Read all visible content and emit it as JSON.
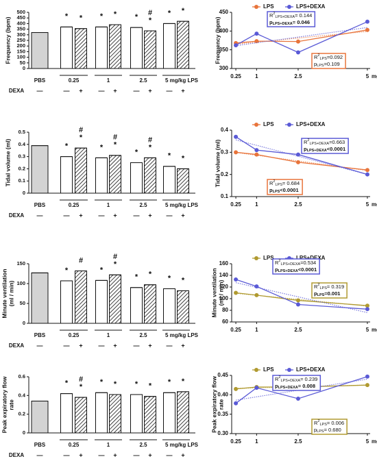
{
  "chart_data": [
    {
      "type": "bar",
      "ylabel": [
        "Frequency (bpm)"
      ],
      "ylim": [
        0,
        500
      ],
      "yticks": [
        0,
        50,
        100,
        150,
        200,
        250,
        300,
        350,
        400,
        450,
        500
      ],
      "dexa_label": "DEXA",
      "groups": [
        {
          "label": "PBS",
          "bars": [
            {
              "value": 320,
              "dexa": "—",
              "fill": "#d3d3d3",
              "annotations": []
            }
          ]
        },
        {
          "label": "0.25",
          "bars": [
            {
              "value": 370,
              "dexa": "—",
              "fill": "#ffffff",
              "annotations": [
                "*"
              ]
            },
            {
              "value": 355,
              "dexa": "+",
              "fill": "hatch",
              "annotations": [
                "*"
              ]
            }
          ]
        },
        {
          "label": "1",
          "bars": [
            {
              "value": 370,
              "dexa": "—",
              "fill": "#ffffff",
              "annotations": [
                "*"
              ]
            },
            {
              "value": 390,
              "dexa": "+",
              "fill": "hatch",
              "annotations": [
                "*"
              ]
            }
          ]
        },
        {
          "label": "2.5",
          "bars": [
            {
              "value": 365,
              "dexa": "—",
              "fill": "#ffffff",
              "annotations": [
                "*"
              ]
            },
            {
              "value": 335,
              "dexa": "+",
              "fill": "hatch",
              "annotations": [
                "#",
                "*"
              ]
            }
          ]
        },
        {
          "label": "5 mg/kg LPS",
          "bars": [
            {
              "value": 400,
              "dexa": "—",
              "fill": "#ffffff",
              "annotations": [
                "*"
              ]
            },
            {
              "value": 420,
              "dexa": "+",
              "fill": "hatch",
              "annotations": [
                "*"
              ]
            }
          ]
        }
      ]
    },
    {
      "type": "line",
      "ylabel": [
        "Frequency (bpm)"
      ],
      "ylim": [
        300,
        450
      ],
      "yticks": [
        300,
        350,
        400,
        450
      ],
      "xlim": [
        0.1,
        5.1
      ],
      "x": [
        0.25,
        1,
        2.5,
        5
      ],
      "xticks": [
        0.25,
        1,
        2.5,
        5
      ],
      "xlabel": "mg/kg LPS",
      "series": [
        {
          "name": "LPS",
          "color": "#e8743b",
          "values": [
            368,
            373,
            372,
            403
          ]
        },
        {
          "name": "LPS+DEXA",
          "color": "#5a5ad6",
          "values": [
            362,
            393,
            343,
            425
          ]
        }
      ],
      "boxes": [
        {
          "color": "#5a5ad6",
          "lines": [
            {
              "bold": false,
              "parts": [
                {
                  "t": "R"
                },
                {
                  "t": "2",
                  "pos": "sup"
                },
                {
                  "t": "LPS+DEXA",
                  "pos": "sub"
                },
                {
                  "t": "= 0.144"
                }
              ]
            },
            {
              "bold": true,
              "parts": [
                {
                  "t": "p"
                },
                {
                  "t": "LPS+DEXA",
                  "pos": "sub"
                },
                {
                  "t": "= 0.046"
                }
              ]
            }
          ]
        },
        {
          "color": "#e8743b",
          "lines": [
            {
              "bold": false,
              "parts": [
                {
                  "t": "R"
                },
                {
                  "t": "2",
                  "pos": "sup"
                },
                {
                  "t": "LPS",
                  "pos": "sub"
                },
                {
                  "t": "=0.092"
                }
              ]
            },
            {
              "bold": false,
              "parts": [
                {
                  "t": "p"
                },
                {
                  "t": "LPS",
                  "pos": "sub"
                },
                {
                  "t": "=0.109"
                }
              ]
            }
          ]
        }
      ]
    },
    {
      "type": "bar",
      "ylabel": [
        "Tidal volume (ml)"
      ],
      "ylim": [
        0,
        0.5
      ],
      "yticks": [
        0,
        0.1,
        0.2,
        0.3,
        0.4,
        0.5
      ],
      "dexa_label": "DEXA",
      "groups": [
        {
          "label": "PBS",
          "bars": [
            {
              "value": 0.39,
              "dexa": "—",
              "fill": "#d3d3d3",
              "annotations": []
            }
          ]
        },
        {
          "label": "0.25",
          "bars": [
            {
              "value": 0.3,
              "dexa": "—",
              "fill": "#ffffff",
              "annotations": [
                "*"
              ]
            },
            {
              "value": 0.37,
              "dexa": "+",
              "fill": "hatch",
              "annotations": [
                "#",
                "*"
              ]
            }
          ]
        },
        {
          "label": "1",
          "bars": [
            {
              "value": 0.29,
              "dexa": "—",
              "fill": "#ffffff",
              "annotations": [
                "*"
              ]
            },
            {
              "value": 0.31,
              "dexa": "+",
              "fill": "hatch",
              "annotations": [
                "#",
                "*"
              ]
            }
          ]
        },
        {
          "label": "2.5",
          "bars": [
            {
              "value": 0.25,
              "dexa": "—",
              "fill": "#ffffff",
              "annotations": [
                "*"
              ]
            },
            {
              "value": 0.29,
              "dexa": "+",
              "fill": "hatch",
              "annotations": [
                "#",
                "*"
              ]
            }
          ]
        },
        {
          "label": "5 mg/kg LPS",
          "bars": [
            {
              "value": 0.22,
              "dexa": "—",
              "fill": "#ffffff",
              "annotations": [
                "*"
              ]
            },
            {
              "value": 0.2,
              "dexa": "+",
              "fill": "hatch",
              "annotations": [
                "*"
              ]
            }
          ]
        }
      ]
    },
    {
      "type": "line",
      "ylabel": [
        "Tidal volume (ml)"
      ],
      "ylim": [
        0.1,
        0.4
      ],
      "yticks": [
        0.1,
        0.2,
        0.3,
        0.4
      ],
      "xlim": [
        0.1,
        5.1
      ],
      "x": [
        0.25,
        1,
        2.5,
        5
      ],
      "xticks": [
        0.25,
        1,
        2.5,
        5
      ],
      "xlabel": "mg/kg LPS",
      "series": [
        {
          "name": "LPS",
          "color": "#e8743b",
          "values": [
            0.3,
            0.29,
            0.255,
            0.22
          ]
        },
        {
          "name": "LPS+DEXA",
          "color": "#5a5ad6",
          "values": [
            0.37,
            0.31,
            0.29,
            0.2
          ]
        }
      ],
      "boxes": [
        {
          "color": "#5a5ad6",
          "lines": [
            {
              "bold": false,
              "parts": [
                {
                  "t": "R"
                },
                {
                  "t": "2",
                  "pos": "sup"
                },
                {
                  "t": "LPS+DEXA",
                  "pos": "sub"
                },
                {
                  "t": "=0.663"
                }
              ]
            },
            {
              "bold": true,
              "parts": [
                {
                  "t": "p"
                },
                {
                  "t": "LPS+DEXA",
                  "pos": "sub"
                },
                {
                  "t": "<0.0001"
                }
              ]
            }
          ]
        },
        {
          "color": "#e8743b",
          "lines": [
            {
              "bold": false,
              "parts": [
                {
                  "t": "R"
                },
                {
                  "t": "2",
                  "pos": "sup"
                },
                {
                  "t": "LPS",
                  "pos": "sub"
                },
                {
                  "t": "= 0.684"
                }
              ]
            },
            {
              "bold": true,
              "parts": [
                {
                  "t": "p"
                },
                {
                  "t": "LPS",
                  "pos": "sub"
                },
                {
                  "t": "<0.0001"
                }
              ]
            }
          ]
        }
      ]
    },
    {
      "type": "bar",
      "ylabel": [
        "Minute ventilation",
        "(ml / min)"
      ],
      "ylim": [
        0,
        150
      ],
      "yticks": [
        0,
        50,
        100,
        150
      ],
      "dexa_label": "DEXA",
      "groups": [
        {
          "label": "PBS",
          "bars": [
            {
              "value": 127,
              "dexa": "—",
              "fill": "#d3d3d3",
              "annotations": []
            }
          ]
        },
        {
          "label": "0.25",
          "bars": [
            {
              "value": 107,
              "dexa": "—",
              "fill": "#ffffff",
              "annotations": [
                "*"
              ]
            },
            {
              "value": 132,
              "dexa": "+",
              "fill": "hatch",
              "annotations": [
                "#"
              ]
            }
          ]
        },
        {
          "label": "1",
          "bars": [
            {
              "value": 108,
              "dexa": "—",
              "fill": "#ffffff",
              "annotations": [
                "*"
              ]
            },
            {
              "value": 122,
              "dexa": "+",
              "fill": "hatch",
              "annotations": [
                "#",
                "*"
              ]
            }
          ]
        },
        {
          "label": "2.5",
          "bars": [
            {
              "value": 90,
              "dexa": "—",
              "fill": "#ffffff",
              "annotations": [
                "*"
              ]
            },
            {
              "value": 97,
              "dexa": "+",
              "fill": "hatch",
              "annotations": [
                "*"
              ]
            }
          ]
        },
        {
          "label": "5 mg/kg LPS",
          "bars": [
            {
              "value": 87,
              "dexa": "—",
              "fill": "#ffffff",
              "annotations": [
                "*"
              ]
            },
            {
              "value": 82,
              "dexa": "+",
              "fill": "hatch",
              "annotations": [
                "*"
              ]
            }
          ]
        }
      ]
    },
    {
      "type": "line",
      "ylabel": [
        "Minute ventilation",
        "(ml / min)"
      ],
      "ylim": [
        60,
        160
      ],
      "yticks": [
        60,
        80,
        100,
        120,
        140,
        160
      ],
      "xlim": [
        0.1,
        5.1
      ],
      "x": [
        0.25,
        1,
        2.5,
        5
      ],
      "xticks": [
        0.25,
        1,
        2.5,
        5
      ],
      "xlabel": "mg/kg LPS",
      "series": [
        {
          "name": "LPS",
          "color": "#b09a30",
          "values": [
            110,
            106,
            97,
            88
          ]
        },
        {
          "name": "LPS+DEXA",
          "color": "#5a5ad6",
          "values": [
            133,
            121,
            90,
            82
          ]
        }
      ],
      "boxes": [
        {
          "color": "#5a5ad6",
          "lines": [
            {
              "bold": false,
              "parts": [
                {
                  "t": "R"
                },
                {
                  "t": "2",
                  "pos": "sup"
                },
                {
                  "t": "LPS+DEXA",
                  "pos": "sub"
                },
                {
                  "t": "=0.534"
                }
              ]
            },
            {
              "bold": true,
              "parts": [
                {
                  "t": "p"
                },
                {
                  "t": "LPS+DEXA",
                  "pos": "sub"
                },
                {
                  "t": "<0.0001"
                }
              ]
            }
          ]
        },
        {
          "color": "#b09a30",
          "lines": [
            {
              "bold": false,
              "parts": [
                {
                  "t": "R"
                },
                {
                  "t": "2",
                  "pos": "sup"
                },
                {
                  "t": "LPS",
                  "pos": "sub"
                },
                {
                  "t": "= 0.319"
                }
              ]
            },
            {
              "bold": true,
              "parts": [
                {
                  "t": "p"
                },
                {
                  "t": "LPS",
                  "pos": "sub"
                },
                {
                  "t": "=0.001"
                }
              ]
            }
          ]
        }
      ]
    },
    {
      "type": "bar",
      "ylabel": [
        "Peak expiratory flow",
        "rate"
      ],
      "ylim": [
        0,
        0.6
      ],
      "yticks": [
        0,
        0.2,
        0.4,
        0.6
      ],
      "dexa_label": "DEXA",
      "groups": [
        {
          "label": "PBS",
          "bars": [
            {
              "value": 0.34,
              "dexa": "—",
              "fill": "#d3d3d3",
              "annotations": []
            }
          ]
        },
        {
          "label": "0.25",
          "bars": [
            {
              "value": 0.42,
              "dexa": "—",
              "fill": "#ffffff",
              "annotations": [
                "*"
              ]
            },
            {
              "value": 0.38,
              "dexa": "+",
              "fill": "hatch",
              "annotations": [
                "#",
                "*"
              ]
            }
          ]
        },
        {
          "label": "1",
          "bars": [
            {
              "value": 0.43,
              "dexa": "—",
              "fill": "#ffffff",
              "annotations": [
                "*"
              ]
            },
            {
              "value": 0.41,
              "dexa": "+",
              "fill": "hatch",
              "annotations": [
                "*"
              ]
            }
          ]
        },
        {
          "label": "2.5",
          "bars": [
            {
              "value": 0.41,
              "dexa": "—",
              "fill": "#ffffff",
              "annotations": [
                "*"
              ]
            },
            {
              "value": 0.39,
              "dexa": "+",
              "fill": "hatch",
              "annotations": [
                "*"
              ]
            }
          ]
        },
        {
          "label": "5 mg/kg LPS",
          "bars": [
            {
              "value": 0.43,
              "dexa": "—",
              "fill": "#ffffff",
              "annotations": [
                "*"
              ]
            },
            {
              "value": 0.44,
              "dexa": "+",
              "fill": "hatch",
              "annotations": [
                "*"
              ]
            }
          ]
        }
      ]
    },
    {
      "type": "line",
      "ylabel": [
        "Peak expiratory flow",
        "rate"
      ],
      "ylim": [
        0.3,
        0.45
      ],
      "yticks": [
        {
          "value": 0.3,
          "label": "0.30"
        },
        0.35,
        {
          "value": 0.4,
          "label": "0.40"
        },
        0.45
      ],
      "xlim": [
        0.1,
        5.1
      ],
      "x": [
        0.25,
        1,
        2.5,
        5
      ],
      "xticks": [
        0.25,
        1,
        2.5,
        5
      ],
      "xlabel": "mg/kg LPS",
      "series": [
        {
          "name": "LPS",
          "color": "#b09a30",
          "values": [
            0.415,
            0.42,
            0.42,
            0.425
          ]
        },
        {
          "name": "LPS+DEXA",
          "color": "#5a5ad6",
          "values": [
            0.378,
            0.418,
            0.39,
            0.447
          ]
        }
      ],
      "boxes": [
        {
          "color": "#5a5ad6",
          "lines": [
            {
              "bold": false,
              "parts": [
                {
                  "t": "R"
                },
                {
                  "t": "2",
                  "pos": "sup"
                },
                {
                  "t": "LPS+DEXA",
                  "pos": "sub"
                },
                {
                  "t": "= 0.239"
                }
              ]
            },
            {
              "bold": true,
              "parts": [
                {
                  "t": "p"
                },
                {
                  "t": "LPS+DEXA",
                  "pos": "sub"
                },
                {
                  "t": "= 0.008"
                }
              ]
            }
          ]
        },
        {
          "color": "#b09a30",
          "lines": [
            {
              "bold": false,
              "parts": [
                {
                  "t": "R"
                },
                {
                  "t": "2",
                  "pos": "sup"
                },
                {
                  "t": "LPS",
                  "pos": "sub"
                },
                {
                  "t": "= 0.006"
                }
              ]
            },
            {
              "bold": false,
              "parts": [
                {
                  "t": "p"
                },
                {
                  "t": "LPS",
                  "pos": "sub"
                },
                {
                  "t": "= 0.680"
                }
              ]
            }
          ]
        }
      ]
    }
  ]
}
